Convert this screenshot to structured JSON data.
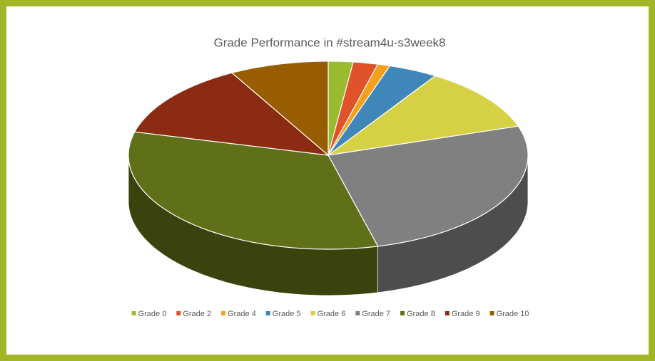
{
  "chart_data": {
    "type": "pie3d",
    "title": "Grade Performance in #stream4u-s3week8",
    "categories": [
      "Grade 0",
      "Grade 2",
      "Grade 4",
      "Grade 5",
      "Grade 6",
      "Grade 7",
      "Grade 8",
      "Grade 9",
      "Grade 10"
    ],
    "values": [
      2,
      2,
      1,
      4,
      11,
      26,
      33,
      13,
      8
    ],
    "colors": [
      "#9bbb2f",
      "#e0522a",
      "#f5a01a",
      "#3e87b8",
      "#d6d044",
      "#808080",
      "#607018",
      "#8b2b12",
      "#985d00"
    ],
    "legend": "bottom"
  }
}
